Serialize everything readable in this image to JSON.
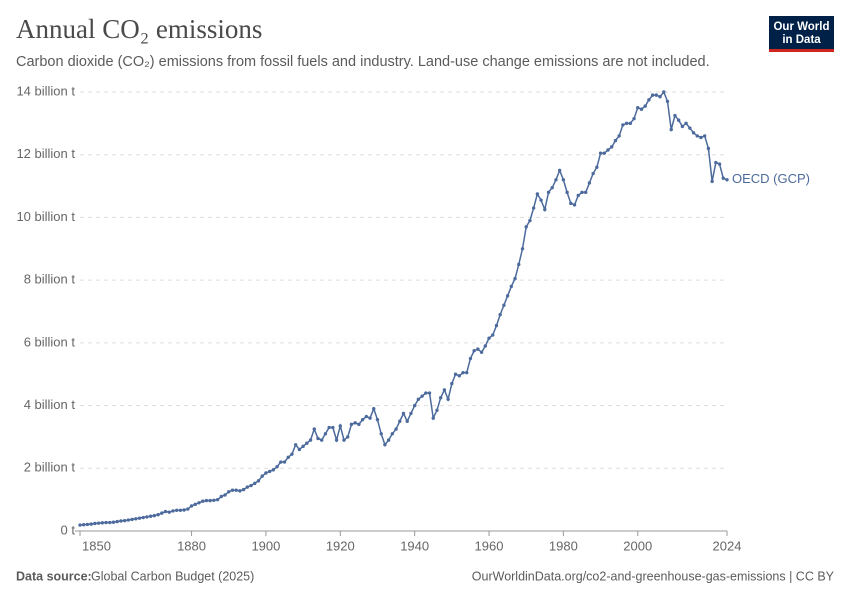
{
  "chart_data": {
    "type": "line",
    "title": "Annual CO₂ emissions",
    "subtitle": "Carbon dioxide (CO₂) emissions from fossil fuels and industry. Land-use change emissions are not included.",
    "logo": [
      "Our World",
      "in Data"
    ],
    "source_label": "Data source:",
    "source": "Global Carbon Budget (2025)",
    "credit": "OurWorldinData.org/co2-and-greenhouse-gas-emissions | CC BY",
    "grid": true,
    "xlim": [
      1850,
      2024
    ],
    "xticks": [
      1850,
      1880,
      1900,
      1920,
      1940,
      1960,
      1980,
      2000,
      2024
    ],
    "ylim": [
      0,
      14
    ],
    "yticks": [
      {
        "value": 0,
        "label": "0 t"
      },
      {
        "value": 2,
        "label": "2 billion t"
      },
      {
        "value": 4,
        "label": "4 billion t"
      },
      {
        "value": 6,
        "label": "6 billion t"
      },
      {
        "value": 8,
        "label": "8 billion t"
      },
      {
        "value": 10,
        "label": "10 billion t"
      },
      {
        "value": 12,
        "label": "12 billion t"
      },
      {
        "value": 14,
        "label": "14 billion t"
      }
    ],
    "x": [
      1850,
      1851,
      1852,
      1853,
      1854,
      1855,
      1856,
      1857,
      1858,
      1859,
      1860,
      1861,
      1862,
      1863,
      1864,
      1865,
      1866,
      1867,
      1868,
      1869,
      1870,
      1871,
      1872,
      1873,
      1874,
      1875,
      1876,
      1877,
      1878,
      1879,
      1880,
      1881,
      1882,
      1883,
      1884,
      1885,
      1886,
      1887,
      1888,
      1889,
      1890,
      1891,
      1892,
      1893,
      1894,
      1895,
      1896,
      1897,
      1898,
      1899,
      1900,
      1901,
      1902,
      1903,
      1904,
      1905,
      1906,
      1907,
      1908,
      1909,
      1910,
      1911,
      1912,
      1913,
      1914,
      1915,
      1916,
      1917,
      1918,
      1919,
      1920,
      1921,
      1922,
      1923,
      1924,
      1925,
      1926,
      1927,
      1928,
      1929,
      1930,
      1931,
      1932,
      1933,
      1934,
      1935,
      1936,
      1937,
      1938,
      1939,
      1940,
      1941,
      1942,
      1943,
      1944,
      1945,
      1946,
      1947,
      1948,
      1949,
      1950,
      1951,
      1952,
      1953,
      1954,
      1955,
      1956,
      1957,
      1958,
      1959,
      1960,
      1961,
      1962,
      1963,
      1964,
      1965,
      1966,
      1967,
      1968,
      1969,
      1970,
      1971,
      1972,
      1973,
      1974,
      1975,
      1976,
      1977,
      1978,
      1979,
      1980,
      1981,
      1982,
      1983,
      1984,
      1985,
      1986,
      1987,
      1988,
      1989,
      1990,
      1991,
      1992,
      1993,
      1994,
      1995,
      1996,
      1997,
      1998,
      1999,
      2000,
      2001,
      2002,
      2003,
      2004,
      2005,
      2006,
      2007,
      2008,
      2009,
      2010,
      2011,
      2012,
      2013,
      2014,
      2015,
      2016,
      2017,
      2018,
      2019,
      2020,
      2021,
      2022,
      2023,
      2024
    ],
    "series": [
      {
        "name": "OECD (GCP)",
        "color": "#4c6a9c",
        "values": [
          0.19,
          0.2,
          0.21,
          0.22,
          0.24,
          0.25,
          0.26,
          0.27,
          0.27,
          0.28,
          0.3,
          0.32,
          0.33,
          0.35,
          0.37,
          0.39,
          0.41,
          0.43,
          0.45,
          0.47,
          0.49,
          0.52,
          0.57,
          0.62,
          0.6,
          0.64,
          0.66,
          0.66,
          0.67,
          0.7,
          0.8,
          0.85,
          0.9,
          0.95,
          0.97,
          0.97,
          0.98,
          1.0,
          1.1,
          1.15,
          1.25,
          1.3,
          1.3,
          1.28,
          1.32,
          1.4,
          1.45,
          1.52,
          1.6,
          1.75,
          1.85,
          1.9,
          1.95,
          2.05,
          2.2,
          2.2,
          2.35,
          2.45,
          2.75,
          2.6,
          2.7,
          2.8,
          2.9,
          3.25,
          2.95,
          2.9,
          3.1,
          3.3,
          3.3,
          2.9,
          3.35,
          2.9,
          3.0,
          3.4,
          3.45,
          3.4,
          3.55,
          3.65,
          3.6,
          3.9,
          3.55,
          3.1,
          2.75,
          2.9,
          3.1,
          3.25,
          3.5,
          3.75,
          3.5,
          3.75,
          4.0,
          4.2,
          4.3,
          4.4,
          4.4,
          3.6,
          3.85,
          4.25,
          4.5,
          4.2,
          4.7,
          5.0,
          4.95,
          5.05,
          5.05,
          5.5,
          5.75,
          5.8,
          5.7,
          5.9,
          6.15,
          6.25,
          6.55,
          6.9,
          7.2,
          7.5,
          7.8,
          8.05,
          8.5,
          9.0,
          9.7,
          9.9,
          10.3,
          10.75,
          10.55,
          10.25,
          10.8,
          10.95,
          11.2,
          11.5,
          11.2,
          10.8,
          10.45,
          10.4,
          10.7,
          10.8,
          10.8,
          11.1,
          11.4,
          11.6,
          12.05,
          12.05,
          12.15,
          12.25,
          12.45,
          12.6,
          12.95,
          13.0,
          13.0,
          13.15,
          13.5,
          13.45,
          13.55,
          13.75,
          13.9,
          13.9,
          13.85,
          14.0,
          13.7,
          12.8,
          13.25,
          13.1,
          12.9,
          13.0,
          12.85,
          12.7,
          12.6,
          12.55,
          12.6,
          12.2,
          11.15,
          11.75,
          11.7,
          11.25,
          11.2
        ]
      }
    ]
  }
}
